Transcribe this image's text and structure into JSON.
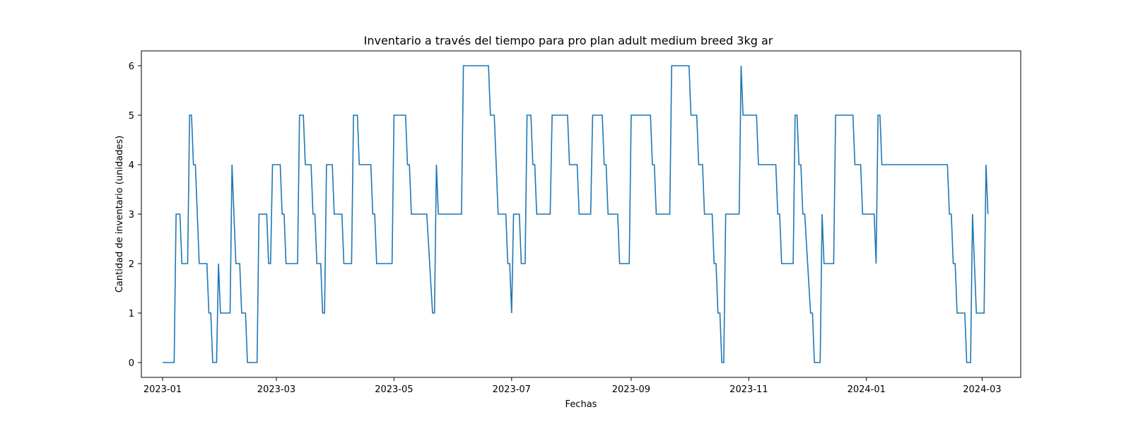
{
  "chart_data": {
    "type": "line",
    "title": "Inventario a través del tiempo para pro plan adult medium breed 3kg ar",
    "xlabel": "Fechas",
    "ylabel": "Cantidad de inventario (unidades)",
    "x_ticks": [
      "2023-01",
      "2023-03",
      "2023-05",
      "2023-07",
      "2023-09",
      "2023-11",
      "2024-01",
      "2024-03"
    ],
    "y_ticks": [
      0,
      1,
      2,
      3,
      4,
      5,
      6
    ],
    "xlim": [
      "2022-12-21",
      "2024-03-21"
    ],
    "ylim": [
      -0.3,
      6.3
    ],
    "grid": false,
    "line_color": "#1f77b4",
    "series": [
      {
        "points": [
          [
            "2023-01-01",
            0
          ],
          [
            "2023-01-07",
            0
          ],
          [
            "2023-01-08",
            3
          ],
          [
            "2023-01-10",
            3
          ],
          [
            "2023-01-11",
            2
          ],
          [
            "2023-01-14",
            2
          ],
          [
            "2023-01-15",
            5
          ],
          [
            "2023-01-16",
            5
          ],
          [
            "2023-01-17",
            4
          ],
          [
            "2023-01-18",
            4
          ],
          [
            "2023-01-20",
            2
          ],
          [
            "2023-01-24",
            2
          ],
          [
            "2023-01-25",
            1
          ],
          [
            "2023-01-26",
            1
          ],
          [
            "2023-01-27",
            0
          ],
          [
            "2023-01-29",
            0
          ],
          [
            "2023-01-30",
            2
          ],
          [
            "2023-01-31",
            1
          ],
          [
            "2023-02-05",
            1
          ],
          [
            "2023-02-06",
            4
          ],
          [
            "2023-02-08",
            2
          ],
          [
            "2023-02-10",
            2
          ],
          [
            "2023-02-11",
            1
          ],
          [
            "2023-02-13",
            1
          ],
          [
            "2023-02-14",
            0
          ],
          [
            "2023-02-19",
            0
          ],
          [
            "2023-02-20",
            3
          ],
          [
            "2023-02-24",
            3
          ],
          [
            "2023-02-25",
            2
          ],
          [
            "2023-02-26",
            2
          ],
          [
            "2023-02-27",
            4
          ],
          [
            "2023-03-03",
            4
          ],
          [
            "2023-03-04",
            3
          ],
          [
            "2023-03-05",
            3
          ],
          [
            "2023-03-06",
            2
          ],
          [
            "2023-03-12",
            2
          ],
          [
            "2023-03-13",
            5
          ],
          [
            "2023-03-15",
            5
          ],
          [
            "2023-03-16",
            4
          ],
          [
            "2023-03-19",
            4
          ],
          [
            "2023-03-20",
            3
          ],
          [
            "2023-03-21",
            3
          ],
          [
            "2023-03-22",
            2
          ],
          [
            "2023-03-24",
            2
          ],
          [
            "2023-03-25",
            1
          ],
          [
            "2023-03-26",
            1
          ],
          [
            "2023-03-27",
            4
          ],
          [
            "2023-03-30",
            4
          ],
          [
            "2023-03-31",
            3
          ],
          [
            "2023-04-04",
            3
          ],
          [
            "2023-04-05",
            2
          ],
          [
            "2023-04-09",
            2
          ],
          [
            "2023-04-10",
            5
          ],
          [
            "2023-04-12",
            5
          ],
          [
            "2023-04-13",
            4
          ],
          [
            "2023-04-19",
            4
          ],
          [
            "2023-04-20",
            3
          ],
          [
            "2023-04-21",
            3
          ],
          [
            "2023-04-22",
            2
          ],
          [
            "2023-04-30",
            2
          ],
          [
            "2023-05-01",
            5
          ],
          [
            "2023-05-07",
            5
          ],
          [
            "2023-05-08",
            4
          ],
          [
            "2023-05-09",
            4
          ],
          [
            "2023-05-10",
            3
          ],
          [
            "2023-05-18",
            3
          ],
          [
            "2023-05-21",
            1
          ],
          [
            "2023-05-22",
            1
          ],
          [
            "2023-05-23",
            4
          ],
          [
            "2023-05-24",
            3
          ],
          [
            "2023-06-05",
            3
          ],
          [
            "2023-06-06",
            6
          ],
          [
            "2023-06-19",
            6
          ],
          [
            "2023-06-20",
            5
          ],
          [
            "2023-06-22",
            5
          ],
          [
            "2023-06-24",
            3
          ],
          [
            "2023-06-28",
            3
          ],
          [
            "2023-06-29",
            2
          ],
          [
            "2023-06-30",
            2
          ],
          [
            "2023-07-01",
            1
          ],
          [
            "2023-07-02",
            3
          ],
          [
            "2023-07-05",
            3
          ],
          [
            "2023-07-06",
            2
          ],
          [
            "2023-07-08",
            2
          ],
          [
            "2023-07-09",
            5
          ],
          [
            "2023-07-11",
            5
          ],
          [
            "2023-07-12",
            4
          ],
          [
            "2023-07-13",
            4
          ],
          [
            "2023-07-14",
            3
          ],
          [
            "2023-07-21",
            3
          ],
          [
            "2023-07-22",
            5
          ],
          [
            "2023-07-30",
            5
          ],
          [
            "2023-07-31",
            4
          ],
          [
            "2023-08-04",
            4
          ],
          [
            "2023-08-05",
            3
          ],
          [
            "2023-08-11",
            3
          ],
          [
            "2023-08-12",
            5
          ],
          [
            "2023-08-17",
            5
          ],
          [
            "2023-08-18",
            4
          ],
          [
            "2023-08-19",
            4
          ],
          [
            "2023-08-20",
            3
          ],
          [
            "2023-08-25",
            3
          ],
          [
            "2023-08-26",
            2
          ],
          [
            "2023-08-31",
            2
          ],
          [
            "2023-09-01",
            5
          ],
          [
            "2023-09-11",
            5
          ],
          [
            "2023-09-12",
            4
          ],
          [
            "2023-09-13",
            4
          ],
          [
            "2023-09-14",
            3
          ],
          [
            "2023-09-21",
            3
          ],
          [
            "2023-09-22",
            6
          ],
          [
            "2023-10-01",
            6
          ],
          [
            "2023-10-02",
            5
          ],
          [
            "2023-10-05",
            5
          ],
          [
            "2023-10-06",
            4
          ],
          [
            "2023-10-08",
            4
          ],
          [
            "2023-10-09",
            3
          ],
          [
            "2023-10-13",
            3
          ],
          [
            "2023-10-14",
            2
          ],
          [
            "2023-10-15",
            2
          ],
          [
            "2023-10-16",
            1
          ],
          [
            "2023-10-17",
            1
          ],
          [
            "2023-10-18",
            0
          ],
          [
            "2023-10-19",
            0
          ],
          [
            "2023-10-20",
            3
          ],
          [
            "2023-10-27",
            3
          ],
          [
            "2023-10-28",
            6
          ],
          [
            "2023-10-29",
            5
          ],
          [
            "2023-11-05",
            5
          ],
          [
            "2023-11-06",
            4
          ],
          [
            "2023-11-15",
            4
          ],
          [
            "2023-11-16",
            3
          ],
          [
            "2023-11-17",
            3
          ],
          [
            "2023-11-18",
            2
          ],
          [
            "2023-11-24",
            2
          ],
          [
            "2023-11-25",
            5
          ],
          [
            "2023-11-26",
            5
          ],
          [
            "2023-11-27",
            4
          ],
          [
            "2023-11-28",
            4
          ],
          [
            "2023-11-29",
            3
          ],
          [
            "2023-11-30",
            3
          ],
          [
            "2023-12-03",
            1
          ],
          [
            "2023-12-04",
            1
          ],
          [
            "2023-12-05",
            0
          ],
          [
            "2023-12-08",
            0
          ],
          [
            "2023-12-09",
            3
          ],
          [
            "2023-12-10",
            2
          ],
          [
            "2023-12-15",
            2
          ],
          [
            "2023-12-16",
            5
          ],
          [
            "2023-12-25",
            5
          ],
          [
            "2023-12-26",
            4
          ],
          [
            "2023-12-29",
            4
          ],
          [
            "2023-12-30",
            3
          ],
          [
            "2024-01-05",
            3
          ],
          [
            "2024-01-06",
            2
          ],
          [
            "2024-01-07",
            5
          ],
          [
            "2024-01-08",
            5
          ],
          [
            "2024-01-09",
            4
          ],
          [
            "2024-02-12",
            4
          ],
          [
            "2024-02-13",
            3
          ],
          [
            "2024-02-14",
            3
          ],
          [
            "2024-02-15",
            2
          ],
          [
            "2024-02-16",
            2
          ],
          [
            "2024-02-17",
            1
          ],
          [
            "2024-02-21",
            1
          ],
          [
            "2024-02-22",
            0
          ],
          [
            "2024-02-24",
            0
          ],
          [
            "2024-02-25",
            3
          ],
          [
            "2024-02-27",
            1
          ],
          [
            "2024-03-02",
            1
          ],
          [
            "2024-03-03",
            4
          ],
          [
            "2024-03-04",
            3
          ]
        ]
      }
    ]
  }
}
